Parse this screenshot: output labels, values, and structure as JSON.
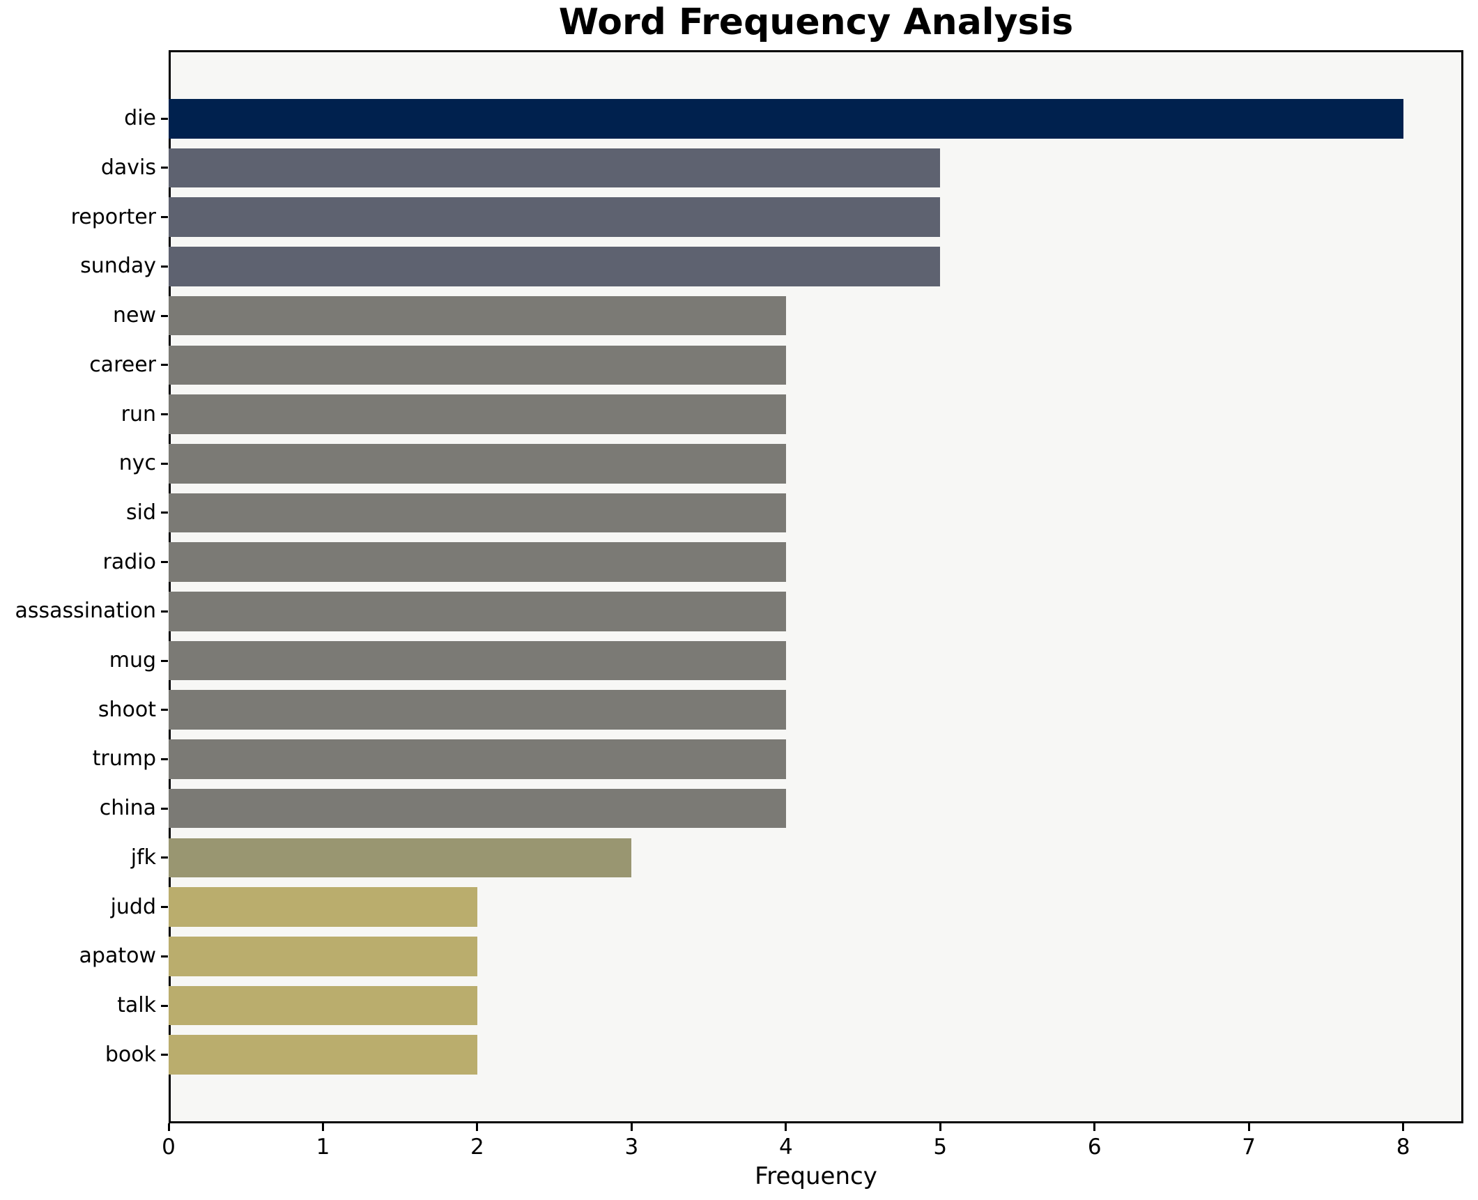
{
  "chart_data": {
    "type": "bar",
    "orientation": "horizontal",
    "title": "Word Frequency Analysis",
    "xlabel": "Frequency",
    "ylabel": "",
    "xlim": [
      0,
      8.39
    ],
    "xticks": [
      0,
      1,
      2,
      3,
      4,
      5,
      6,
      7,
      8
    ],
    "grid": false,
    "legend": "none",
    "figure_background": "#ffffff",
    "plot_background": "#f7f7f5",
    "spine_color": "#000000",
    "categories": [
      "die",
      "davis",
      "reporter",
      "sunday",
      "new",
      "career",
      "run",
      "nyc",
      "sid",
      "radio",
      "assassination",
      "mug",
      "shoot",
      "trump",
      "china",
      "jfk",
      "judd",
      "apatow",
      "talk",
      "book"
    ],
    "values": [
      8,
      5,
      5,
      5,
      4,
      4,
      4,
      4,
      4,
      4,
      4,
      4,
      4,
      4,
      4,
      3,
      2,
      2,
      2,
      2
    ],
    "bar_colors": [
      "#00214e",
      "#5e6270",
      "#5e6270",
      "#5e6270",
      "#7b7a75",
      "#7b7a75",
      "#7b7a75",
      "#7b7a75",
      "#7b7a75",
      "#7b7a75",
      "#7b7a75",
      "#7b7a75",
      "#7b7a75",
      "#7b7a75",
      "#7b7a75",
      "#999671",
      "#baad6d",
      "#baad6d",
      "#baad6d",
      "#baad6d"
    ]
  }
}
